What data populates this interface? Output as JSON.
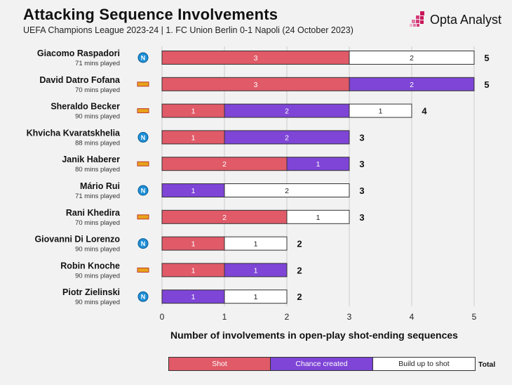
{
  "header": {
    "title": "Attacking Sequence Involvements",
    "subtitle": "UEFA Champions League 2023-24 | 1. FC Union Berlin 0-1 Napoli (24 October 2023)",
    "brand": "Opta Analyst"
  },
  "legend": {
    "shot": "Shot",
    "chance": "Chance created",
    "build": "Build up to shot",
    "total": "Total"
  },
  "colors": {
    "shot": "#e05a68",
    "chance": "#7e45d6",
    "build": "#ffffff",
    "napoli": "#1e8fd6",
    "union": "#e8a21a"
  },
  "chart_data": {
    "type": "bar",
    "orientation": "horizontal",
    "stacked": true,
    "xlabel": "Number of involvements in open-play shot-ending sequences",
    "xlim": [
      0,
      5
    ],
    "xticks": [
      0,
      1,
      2,
      3,
      4,
      5
    ],
    "series": [
      {
        "name": "Shot",
        "color": "#e05a68"
      },
      {
        "name": "Chance created",
        "color": "#7e45d6"
      },
      {
        "name": "Build up to shot",
        "color": "#ffffff"
      }
    ],
    "players": [
      {
        "name": "Giacomo Raspadori",
        "minutes": "71 mins played",
        "club": "napoli",
        "shot": 3,
        "chance": 0,
        "build": 2,
        "total": 5
      },
      {
        "name": "David Datro Fofana",
        "minutes": "70 mins played",
        "club": "union",
        "shot": 3,
        "chance": 2,
        "build": 0,
        "total": 5
      },
      {
        "name": "Sheraldo Becker",
        "minutes": "90 mins played",
        "club": "union",
        "shot": 1,
        "chance": 2,
        "build": 1,
        "total": 4
      },
      {
        "name": "Khvicha Kvaratskhelia",
        "minutes": "88 mins played",
        "club": "napoli",
        "shot": 1,
        "chance": 2,
        "build": 0,
        "total": 3
      },
      {
        "name": "Janik Haberer",
        "minutes": "80 mins played",
        "club": "union",
        "shot": 2,
        "chance": 1,
        "build": 0,
        "total": 3
      },
      {
        "name": "Mário Rui",
        "minutes": "71 mins played",
        "club": "napoli",
        "shot": 0,
        "chance": 1,
        "build": 2,
        "total": 3
      },
      {
        "name": "Rani Khedira",
        "minutes": "70 mins played",
        "club": "union",
        "shot": 2,
        "chance": 0,
        "build": 1,
        "total": 3
      },
      {
        "name": "Giovanni Di Lorenzo",
        "minutes": "90 mins played",
        "club": "napoli",
        "shot": 1,
        "chance": 0,
        "build": 1,
        "total": 2
      },
      {
        "name": "Robin Knoche",
        "minutes": "90 mins played",
        "club": "union",
        "shot": 1,
        "chance": 1,
        "build": 0,
        "total": 2
      },
      {
        "name": "Piotr Zielinski",
        "minutes": "90 mins played",
        "club": "napoli",
        "shot": 0,
        "chance": 1,
        "build": 1,
        "total": 2
      }
    ]
  }
}
